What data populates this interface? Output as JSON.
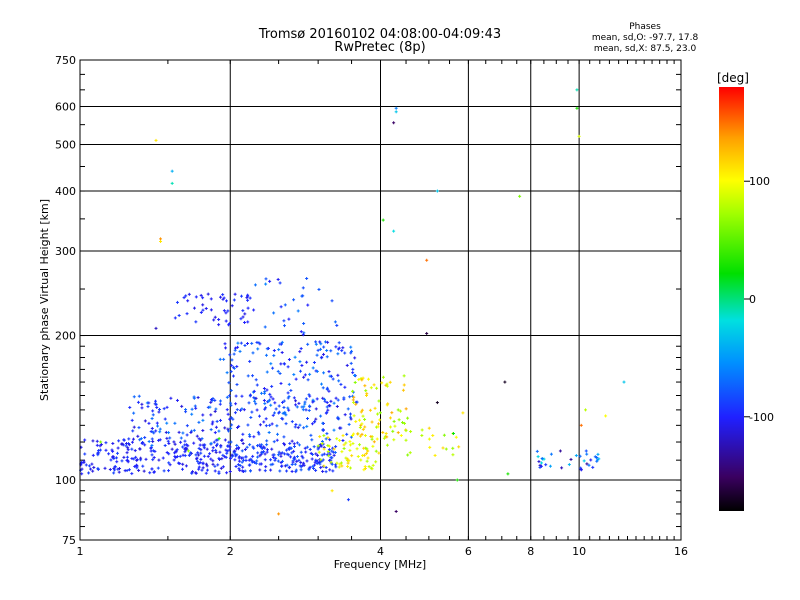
{
  "chart_data": {
    "type": "scatter",
    "title": "Tromsø 20160102 04:08:00-04:09:43",
    "subtitle": "RwPretec (8p)",
    "xlabel": "Frequency [MHz]",
    "ylabel": "Stationary phase Virtual Height [km]",
    "x_scale": "log",
    "y_scale": "log",
    "xlim": [
      1,
      16
    ],
    "ylim": [
      75,
      750
    ],
    "x_ticks": [
      "1",
      "2",
      "4",
      "6",
      "8",
      "10",
      "16"
    ],
    "y_ticks": [
      "75",
      "100",
      "200",
      "300",
      "400",
      "500",
      "600",
      "750"
    ],
    "grid": true,
    "phase_stats": {
      "heading": "Phases",
      "line_o": "mean, sd,O: -97.7, 17.8",
      "line_x": "mean, sd,X:  87.5, 23.0"
    },
    "colorbar": {
      "label": "[deg]",
      "range": [
        -180,
        180
      ],
      "ticks": [
        "100",
        "0",
        "-100"
      ],
      "tick_values": [
        100,
        0,
        -100
      ]
    },
    "clusters": [
      {
        "f": [
          1.0,
          2.0
        ],
        "h": [
          103,
          122
        ],
        "phase": [
          -115,
          -85
        ],
        "n": 240
      },
      {
        "f": [
          2.0,
          3.3
        ],
        "h": [
          104,
          118
        ],
        "phase": [
          -110,
          -75
        ],
        "n": 200
      },
      {
        "f": [
          1.25,
          3.5
        ],
        "h": [
          118,
          150
        ],
        "phase": [
          -115,
          -60
        ],
        "n": 260
      },
      {
        "f": [
          1.9,
          3.6
        ],
        "h": [
          140,
          195
        ],
        "phase": [
          -110,
          -60
        ],
        "n": 170
      },
      {
        "f": [
          1.55,
          2.2
        ],
        "h": [
          210,
          245
        ],
        "phase": [
          -110,
          -90
        ],
        "n": 50
      },
      {
        "f": [
          2.1,
          3.3
        ],
        "h": [
          200,
          265
        ],
        "phase": [
          -105,
          -60
        ],
        "n": 30
      },
      {
        "f": [
          3.0,
          4.0
        ],
        "h": [
          105,
          125
        ],
        "phase": [
          70,
          120
        ],
        "n": 70
      },
      {
        "f": [
          3.5,
          4.6
        ],
        "h": [
          118,
          165
        ],
        "phase": [
          60,
          135
        ],
        "n": 80
      },
      {
        "f": [
          4.4,
          5.8
        ],
        "h": [
          112,
          130
        ],
        "phase": [
          60,
          120
        ],
        "n": 20
      },
      {
        "f": [
          8.0,
          11.0
        ],
        "h": [
          105,
          115
        ],
        "phase": [
          -140,
          -20
        ],
        "n": 35
      }
    ],
    "points": [
      {
        "f": 1.42,
        "h": 510,
        "phase": 110
      },
      {
        "f": 1.53,
        "h": 440,
        "phase": -40
      },
      {
        "f": 1.53,
        "h": 415,
        "phase": -10
      },
      {
        "f": 1.45,
        "h": 318,
        "phase": 140
      },
      {
        "f": 1.45,
        "h": 314,
        "phase": 110
      },
      {
        "f": 1.42,
        "h": 207,
        "phase": -120
      },
      {
        "f": 4.3,
        "h": 595,
        "phase": -60
      },
      {
        "f": 4.3,
        "h": 585,
        "phase": -30
      },
      {
        "f": 4.25,
        "h": 555,
        "phase": -150
      },
      {
        "f": 5.2,
        "h": 400,
        "phase": -30
      },
      {
        "f": 4.05,
        "h": 348,
        "phase": 30
      },
      {
        "f": 4.25,
        "h": 330,
        "phase": -20
      },
      {
        "f": 4.95,
        "h": 287,
        "phase": 150
      },
      {
        "f": 4.95,
        "h": 202,
        "phase": -160
      },
      {
        "f": 7.6,
        "h": 390,
        "phase": 60
      },
      {
        "f": 9.9,
        "h": 650,
        "phase": -10
      },
      {
        "f": 9.9,
        "h": 595,
        "phase": 30
      },
      {
        "f": 10.0,
        "h": 520,
        "phase": 90
      },
      {
        "f": 12.3,
        "h": 160,
        "phase": -30
      },
      {
        "f": 7.1,
        "h": 160,
        "phase": -170
      },
      {
        "f": 10.1,
        "h": 130,
        "phase": 150
      },
      {
        "f": 10.3,
        "h": 140,
        "phase": 80
      },
      {
        "f": 11.3,
        "h": 136,
        "phase": 100
      },
      {
        "f": 2.5,
        "h": 85,
        "phase": 140
      },
      {
        "f": 3.45,
        "h": 91,
        "phase": -90
      },
      {
        "f": 3.2,
        "h": 95,
        "phase": 110
      },
      {
        "f": 4.3,
        "h": 86,
        "phase": -150
      },
      {
        "f": 5.7,
        "h": 100,
        "phase": 30
      },
      {
        "f": 7.2,
        "h": 103,
        "phase": 30
      },
      {
        "f": 5.2,
        "h": 145,
        "phase": -170
      },
      {
        "f": 5.6,
        "h": 125,
        "phase": 20
      },
      {
        "f": 5.85,
        "h": 138,
        "phase": 110
      },
      {
        "f": 1.1,
        "h": 120,
        "phase": 60
      },
      {
        "f": 1.9,
        "h": 122,
        "phase": 40
      },
      {
        "f": 1.65,
        "h": 115,
        "phase": 70
      }
    ]
  }
}
